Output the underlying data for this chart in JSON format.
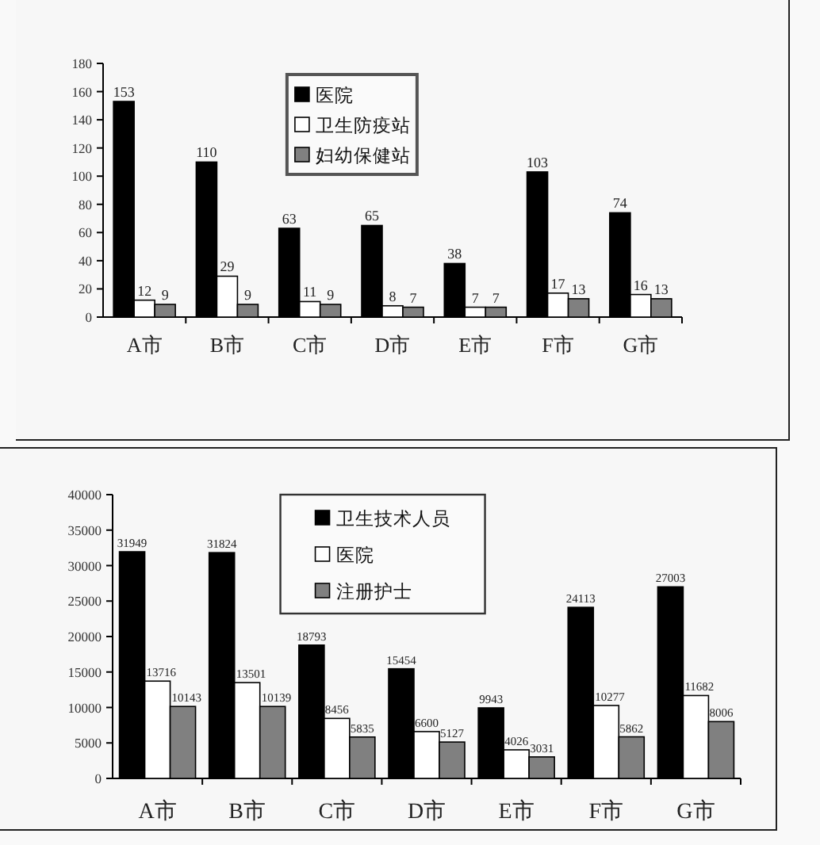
{
  "chart_data": [
    {
      "type": "bar",
      "categories": [
        "A市",
        "B市",
        "C市",
        "D市",
        "E市",
        "F市",
        "G市"
      ],
      "series": [
        {
          "name": "医院",
          "color": "#000000",
          "values": [
            153,
            110,
            63,
            65,
            38,
            103,
            74
          ]
        },
        {
          "name": "卫生防疫站",
          "color": "#ffffff",
          "values": [
            12,
            29,
            11,
            8,
            7,
            17,
            16
          ]
        },
        {
          "name": "妇幼保健站",
          "color": "#808080",
          "values": [
            9,
            9,
            9,
            7,
            7,
            13,
            13
          ]
        }
      ],
      "ylim": [
        0,
        180
      ],
      "yticks": [
        0,
        20,
        40,
        60,
        80,
        100,
        120,
        140,
        160,
        180
      ],
      "data_labels": true,
      "legend": "top"
    },
    {
      "type": "bar",
      "categories": [
        "A市",
        "B市",
        "C市",
        "D市",
        "E市",
        "F市",
        "G市"
      ],
      "series": [
        {
          "name": "卫生技术人员",
          "color": "#000000",
          "values": [
            31949,
            31824,
            18793,
            15454,
            9943,
            24113,
            27003
          ]
        },
        {
          "name": "医院",
          "color": "#ffffff",
          "values": [
            13716,
            13501,
            8456,
            6600,
            4026,
            10277,
            11682
          ]
        },
        {
          "name": "注册护士",
          "color": "#808080",
          "values": [
            10143,
            10139,
            5835,
            5127,
            3031,
            5862,
            8006
          ]
        }
      ],
      "ylim": [
        0,
        40000
      ],
      "yticks": [
        0,
        5000,
        10000,
        15000,
        20000,
        25000,
        30000,
        35000,
        40000
      ],
      "data_labels": true,
      "legend": "top"
    }
  ]
}
